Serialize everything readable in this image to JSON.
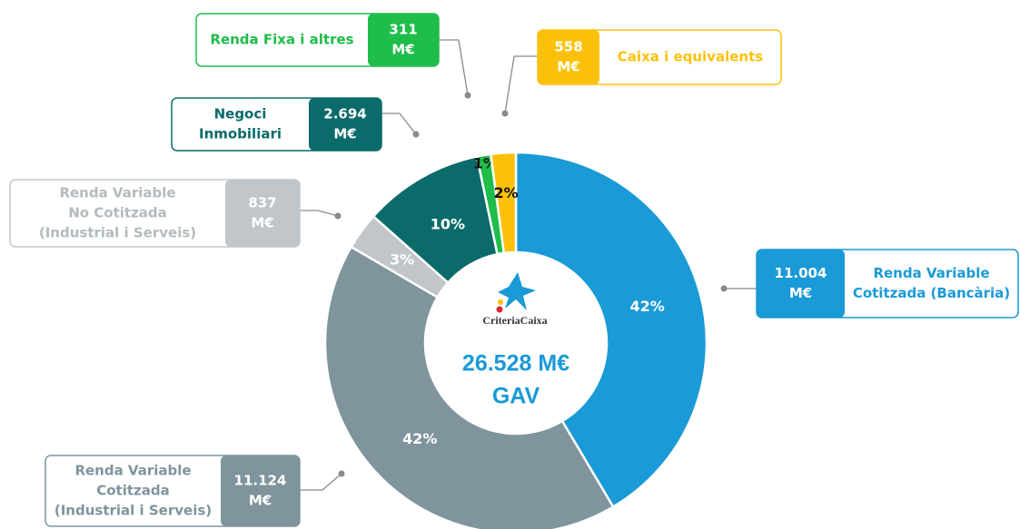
{
  "chart_data": {
    "type": "donut",
    "categories": [
      [
        "Renda Variable",
        "Cotitzada (Bancària)"
      ],
      [
        "Renda Variable",
        "Cotitzada",
        "(Industrial i Serveis)"
      ],
      [
        "Renda Variable",
        "No Cotitzada",
        "(Industrial i Serveis)"
      ],
      [
        "Negoci",
        "Inmobiliari"
      ],
      [
        "Renda Fixa i altres"
      ],
      [
        "Caixa i equivalents"
      ]
    ],
    "values": [
      11004,
      11124,
      837,
      2694,
      311,
      558
    ],
    "value_labels": [
      "11.004",
      "11.124",
      "837",
      "2.694",
      "311",
      "558"
    ],
    "unit": "M€",
    "percents": [
      42,
      42,
      3,
      10,
      1,
      2
    ],
    "percent_labels": [
      "42%",
      "42%",
      "3%",
      "10%",
      "1%",
      "2%"
    ],
    "colors": [
      "#1a9ad6",
      "#7f949d",
      "#c0c6c9",
      "#0a6b6a",
      "#1fbd4a",
      "#fbc10a"
    ],
    "center_label": "26.528 M€",
    "center_sublabel": "GAV",
    "logo_text": "CriteriaCaixa"
  }
}
